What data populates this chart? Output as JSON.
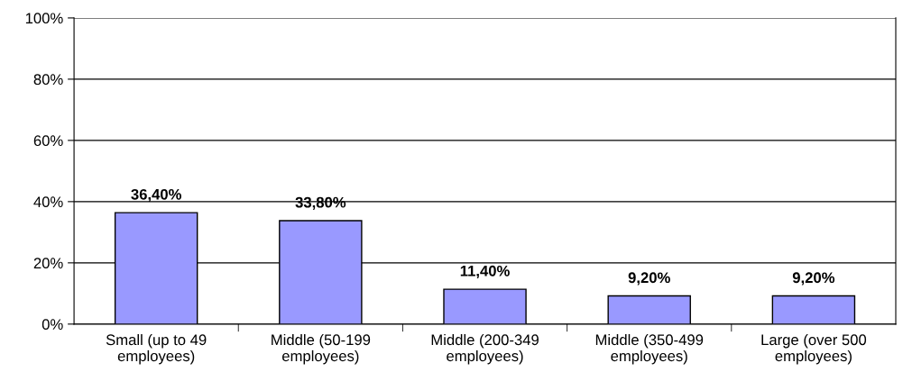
{
  "chart_data": {
    "type": "bar",
    "categories": [
      "Small (up to 49\nemployees)",
      "Middle (50-199\nemployees)",
      "Middle (200-349\nemployees)",
      "Middle (350-499\nemployees)",
      "Large (over 500\nemployees)"
    ],
    "values": [
      36.4,
      33.8,
      11.4,
      9.2,
      9.2
    ],
    "value_labels": [
      "36,40%",
      "33,80%",
      "11,40%",
      "9,20%",
      "9,20%"
    ],
    "color": "#9999ff",
    "ylim": [
      0,
      100
    ],
    "yticks": [
      {
        "value": 0,
        "label": "0%"
      },
      {
        "value": 20,
        "label": "20%"
      },
      {
        "value": 40,
        "label": "40%"
      },
      {
        "value": 60,
        "label": "60%"
      },
      {
        "value": 80,
        "label": "80%"
      },
      {
        "value": 100,
        "label": "100%"
      }
    ],
    "grid": "y",
    "legend": false
  }
}
